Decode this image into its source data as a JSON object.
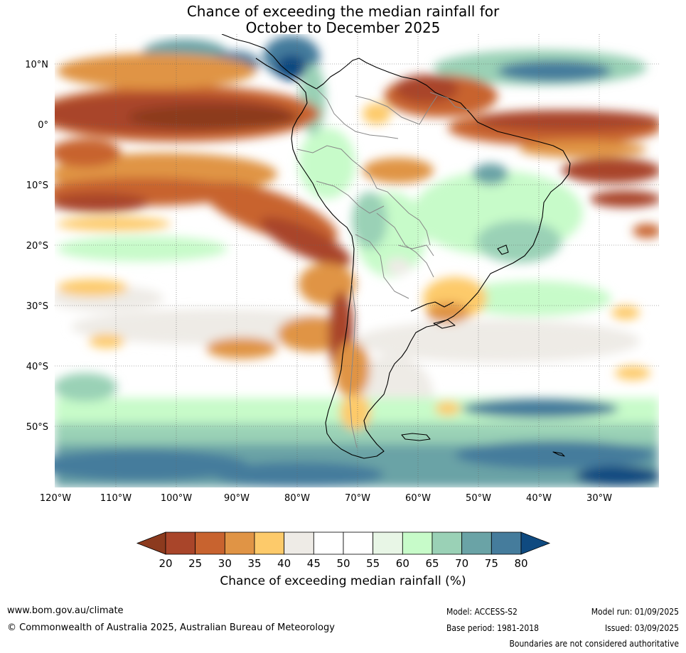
{
  "title": {
    "line1": "Chance of exceeding the median rainfall for",
    "line2": "October to December 2025"
  },
  "map": {
    "lat_labels": [
      "10°N",
      "0°",
      "10°S",
      "20°S",
      "30°S",
      "40°S",
      "50°S"
    ],
    "lon_labels": [
      "120°W",
      "110°W",
      "100°W",
      "90°W",
      "80°W",
      "70°W",
      "60°W",
      "50°W",
      "40°W",
      "30°W"
    ],
    "region": "South America and surrounding oceans"
  },
  "colorbar": {
    "title": "Chance of exceeding median rainfall (%)",
    "ticks": [
      "20",
      "25",
      "30",
      "35",
      "40",
      "45",
      "50",
      "55",
      "60",
      "65",
      "70",
      "75",
      "80"
    ],
    "colors": {
      "under": "#8c3a1e",
      "bins": [
        "#a9452a",
        "#c8632f",
        "#e09445",
        "#fdca6a",
        "#eeebe6",
        "#ffffff",
        "#ffffff",
        "#e8f6e6",
        "#c7fbc9",
        "#9ad1b6",
        "#6aa3a6",
        "#457c9c"
      ],
      "over": "#0f4a80"
    }
  },
  "footer": {
    "website": "www.bom.gov.au/climate",
    "copyright": "© Commonwealth of Australia 2025, Australian Bureau of Meteorology",
    "model": "Model: ACCESS-S2",
    "base_period": "Base period: 1981-2018",
    "model_run": "Model run: 01/09/2025",
    "issued": "Issued: 03/09/2025",
    "disclaimer": "Boundaries are not considered authoritative"
  }
}
